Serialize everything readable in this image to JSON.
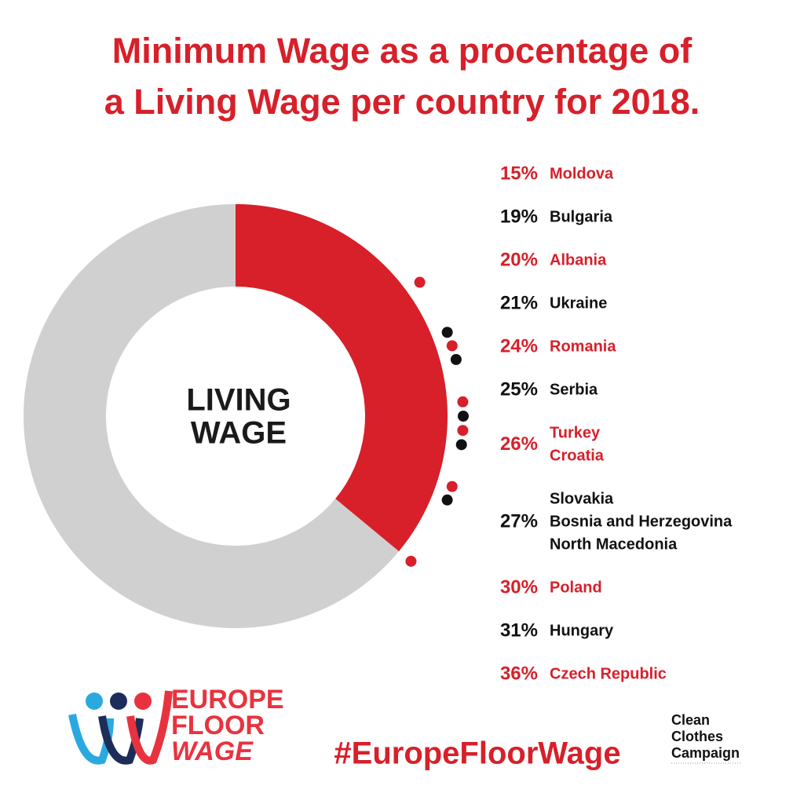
{
  "chart_data": {
    "type": "radial",
    "title": [
      "Minimum Wage as a procentage of",
      "a Living Wage per country for 2018."
    ],
    "center_label": [
      "LIVING",
      "WAGE"
    ],
    "ylim": [
      0,
      100
    ],
    "arc_color": "#d7202a",
    "track_color": "#d0d0d0",
    "groups": [
      {
        "value": 15,
        "value_label": "15%",
        "countries": [
          "Moldova"
        ],
        "color": "#d7202a"
      },
      {
        "value": 19,
        "value_label": "19%",
        "countries": [
          "Bulgaria"
        ],
        "color": "#111111"
      },
      {
        "value": 20,
        "value_label": "20%",
        "countries": [
          "Albania"
        ],
        "color": "#d7202a"
      },
      {
        "value": 21,
        "value_label": "21%",
        "countries": [
          "Ukraine"
        ],
        "color": "#111111"
      },
      {
        "value": 24,
        "value_label": "24%",
        "countries": [
          "Romania"
        ],
        "color": "#d7202a"
      },
      {
        "value": 25,
        "value_label": "25%",
        "countries": [
          "Serbia"
        ],
        "color": "#111111"
      },
      {
        "value": 26,
        "value_label": "26%",
        "countries": [
          "Turkey",
          "Croatia"
        ],
        "color": "#d7202a"
      },
      {
        "value": 27,
        "value_label": "27%",
        "countries": [
          "Slovakia",
          "Bosnia and Herzegovina",
          "North Macedonia"
        ],
        "color": "#111111"
      },
      {
        "value": 30,
        "value_label": "30%",
        "countries": [
          "Poland"
        ],
        "color": "#d7202a"
      },
      {
        "value": 31,
        "value_label": "31%",
        "countries": [
          "Hungary"
        ],
        "color": "#111111"
      },
      {
        "value": 36,
        "value_label": "36%",
        "countries": [
          "Czech Republic"
        ],
        "color": "#d7202a"
      }
    ]
  },
  "footer": {
    "logo": [
      "EUROPE",
      "FLOOR",
      "WAGE"
    ],
    "hashtag": "#EuropeFloorWage",
    "partner": [
      "Clean",
      "Clothes",
      "Campaign"
    ]
  }
}
